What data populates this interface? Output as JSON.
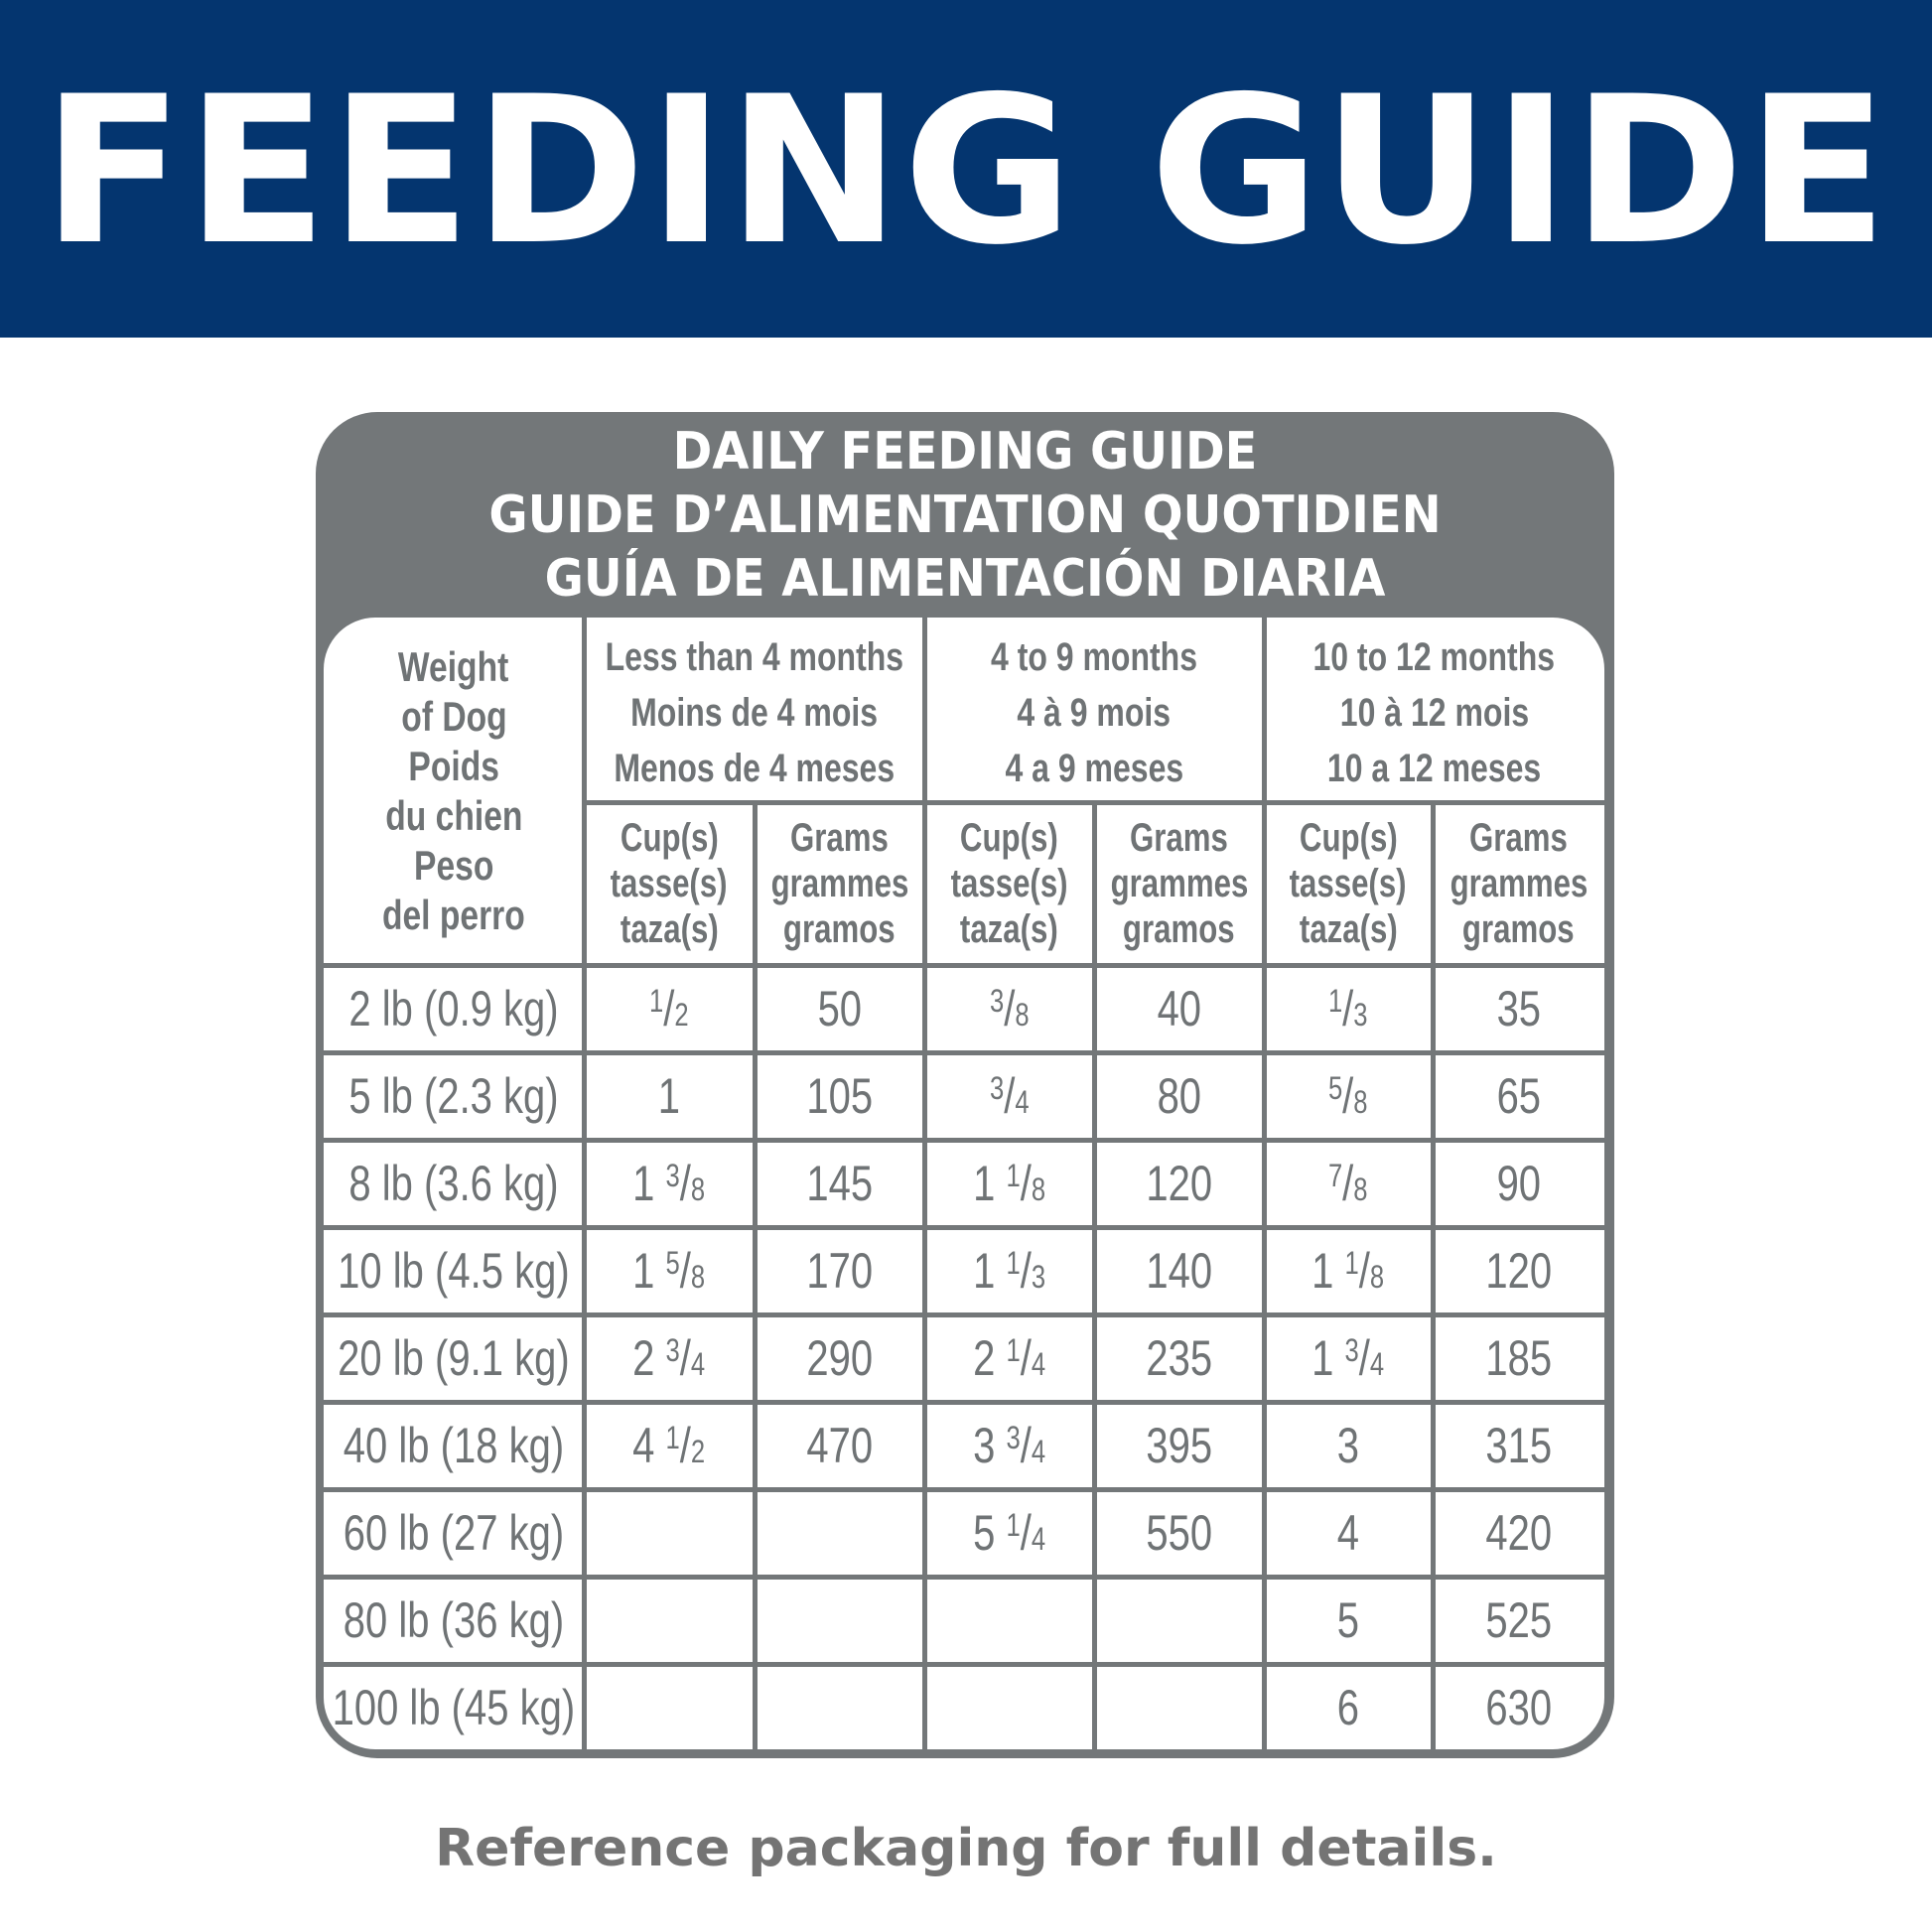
{
  "banner": {
    "title": "FEEDING GUIDE",
    "bg_color": "#04356F"
  },
  "panel": {
    "title_lines": [
      "DAILY FEEDING GUIDE",
      "GUIDE D’ALIMENTATION QUOTIDIEN",
      "GUÍA DE ALIMENTACIÓN DIARIA"
    ],
    "bg_color": "#737779"
  },
  "table": {
    "weight_header": [
      "Weight",
      "of Dog",
      "Poids",
      "du chien",
      "Peso",
      "del perro"
    ],
    "age_groups": [
      {
        "lines": [
          "Less than 4 months",
          "Moins de 4 mois",
          "Menos de 4 meses"
        ]
      },
      {
        "lines": [
          "4 to 9 months",
          "4 à 9 mois",
          "4 a 9 meses"
        ]
      },
      {
        "lines": [
          "10 to 12 months",
          "10 à 12 mois",
          "10 a 12 meses"
        ]
      }
    ],
    "unit_headers": {
      "cups": [
        "Cup(s)",
        "tasse(s)",
        "taza(s)"
      ],
      "grams": [
        "Grams",
        "grammes",
        "gramos"
      ]
    },
    "rows": [
      {
        "weight": "2 lb (0.9 kg)",
        "cells": [
          "1/2",
          "50",
          "3/8",
          "40",
          "1/3",
          "35"
        ]
      },
      {
        "weight": "5 lb (2.3 kg)",
        "cells": [
          "1",
          "105",
          "3/4",
          "80",
          "5/8",
          "65"
        ]
      },
      {
        "weight": "8 lb (3.6 kg)",
        "cells": [
          "1 3/8",
          "145",
          "1 1/8",
          "120",
          "7/8",
          "90"
        ]
      },
      {
        "weight": "10 lb (4.5 kg)",
        "cells": [
          "1 5/8",
          "170",
          "1 1/3",
          "140",
          "1 1/8",
          "120"
        ]
      },
      {
        "weight": "20 lb (9.1 kg)",
        "cells": [
          "2 3/4",
          "290",
          "2 1/4",
          "235",
          "1 3/4",
          "185"
        ]
      },
      {
        "weight": "40 lb (18 kg)",
        "cells": [
          "4 1/2",
          "470",
          "3 3/4",
          "395",
          "3",
          "315"
        ]
      },
      {
        "weight": "60 lb (27 kg)",
        "cells": [
          "",
          "",
          "5 1/4",
          "550",
          "4",
          "420"
        ]
      },
      {
        "weight": "80 lb (36 kg)",
        "cells": [
          "",
          "",
          "",
          "",
          "5",
          "525"
        ]
      },
      {
        "weight": "100 lb (45 kg)",
        "cells": [
          "",
          "",
          "",
          "",
          "6",
          "630"
        ]
      }
    ]
  },
  "footer": {
    "text": "Reference packaging for full details."
  }
}
